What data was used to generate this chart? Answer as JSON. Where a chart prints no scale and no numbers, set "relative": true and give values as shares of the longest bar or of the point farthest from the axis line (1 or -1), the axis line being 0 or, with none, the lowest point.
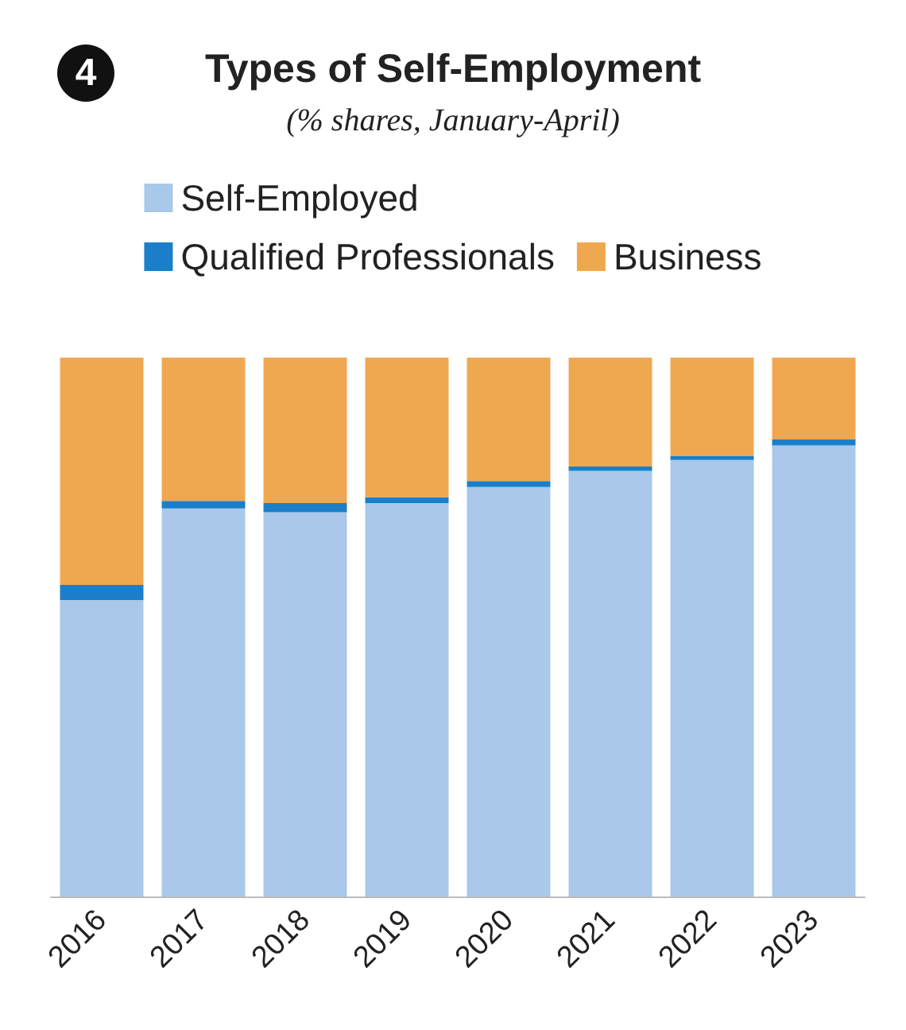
{
  "chart_data": {
    "type": "bar",
    "title": "Types of Self-Employment",
    "subtitle": "(% shares, January-April)",
    "annotations": [
      "4"
    ],
    "relative": true,
    "stacked": true,
    "legend": "top",
    "categories": [
      "2016",
      "2017",
      "2018",
      "2019",
      "2020",
      "2021",
      "2022",
      "2023"
    ],
    "series": [
      {
        "name": "Self-Employed",
        "color": "#a9c8ea",
        "values": [
          0.55,
          0.72,
          0.713,
          0.73,
          0.76,
          0.79,
          0.81,
          0.837
        ]
      },
      {
        "name": "Qualified Professionals",
        "color": "#1a7fc8",
        "values": [
          0.028,
          0.014,
          0.017,
          0.011,
          0.011,
          0.008,
          0.008,
          0.011
        ]
      },
      {
        "name": "Business",
        "color": "#f0a850",
        "values": [
          0.422,
          0.266,
          0.27,
          0.259,
          0.229,
          0.202,
          0.182,
          0.152
        ]
      }
    ]
  }
}
